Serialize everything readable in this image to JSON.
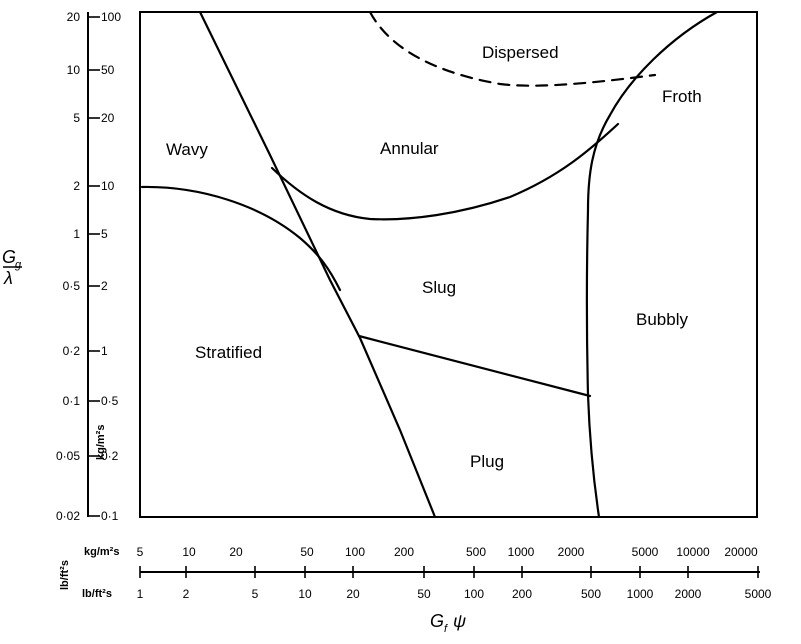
{
  "diagram": {
    "regions": [
      "Dispersed",
      "Froth",
      "Wavy",
      "Annular",
      "Slug",
      "Bubbly",
      "Stratified",
      "Plug"
    ],
    "y_axis": {
      "label_top": "G",
      "label_top_sub": "g",
      "label_bottom": "λ",
      "left_ticks": [
        "20",
        "10",
        "5",
        "2",
        "1",
        "0·5",
        "0·2",
        "0·1",
        "0·05",
        "0·02"
      ],
      "right_ticks": [
        "100",
        "50",
        "20",
        "10",
        "5",
        "2",
        "1",
        "0·5",
        "0·2",
        "0·1"
      ],
      "right_unit": "kg/m²s"
    },
    "x_axis": {
      "kg_unit": "kg/m²s",
      "kg_ticks": [
        "5",
        "10",
        "20",
        "50",
        "100",
        "200",
        "500",
        "1000",
        "2000",
        "5000",
        "10000",
        "20000"
      ],
      "lb_unit_side": "lb/ft²s",
      "lb_unit": "lb/ft²s",
      "lb_ticks": [
        "1",
        "2",
        "5",
        "10",
        "20",
        "50",
        "100",
        "200",
        "500",
        "1000",
        "2000",
        "5000"
      ],
      "title_main": "G",
      "title_sub": "f",
      "title_symbol": "ψ"
    }
  }
}
